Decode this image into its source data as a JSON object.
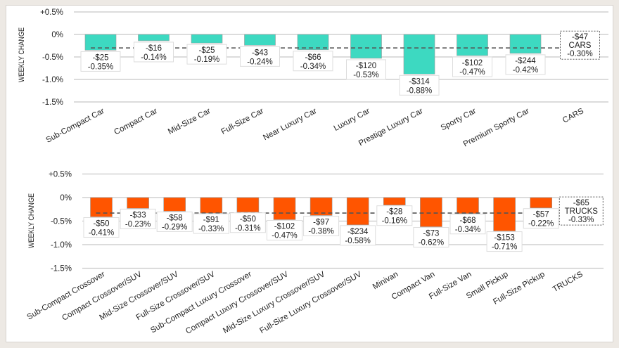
{
  "chart_data": [
    {
      "type": "bar",
      "ylabel": "WEEKLY CHANGE",
      "ylim": [
        -1.5,
        0.5
      ],
      "yticks": [
        "+0.5%",
        "0%",
        "-0.5%",
        "-1.0%",
        "-1.5%"
      ],
      "ytick_values": [
        0.5,
        0,
        -0.5,
        -1.0,
        -1.5
      ],
      "grid": true,
      "bar_color": "#3dd9c1",
      "categories": [
        "Sub-Compact Car",
        "Compact Car",
        "Mid-Size Car",
        "Full-Size Car",
        "Near Luxury Car",
        "Luxury Car",
        "Prestige Luxury Car",
        "Sporty Car",
        "Premium Sporty Car"
      ],
      "values": [
        -0.35,
        -0.14,
        -0.19,
        -0.24,
        -0.34,
        -0.53,
        -0.88,
        -0.47,
        -0.42
      ],
      "dollar_labels": [
        "-$25",
        "-$16",
        "-$25",
        "-$43",
        "-$66",
        "-$120",
        "-$314",
        "-$102",
        "-$244"
      ],
      "pct_labels": [
        "-0.35%",
        "-0.14%",
        "-0.19%",
        "-0.24%",
        "-0.34%",
        "-0.53%",
        "-0.88%",
        "-0.47%",
        "-0.42%"
      ],
      "average": {
        "category": "CARS",
        "value": -0.3,
        "dollar_label": "-$47",
        "name_label": "CARS",
        "pct_label": "-0.30%"
      }
    },
    {
      "type": "bar",
      "ylabel": "WEEKLY CHANGE",
      "ylim": [
        -1.5,
        0.5
      ],
      "yticks": [
        "+0.5%",
        "0%",
        "-0.5%",
        "-1.0%",
        "-1.5%"
      ],
      "ytick_values": [
        0.5,
        0,
        -0.5,
        -1.0,
        -1.5
      ],
      "grid": true,
      "bar_color": "#ff5500",
      "categories": [
        "Sub-Compact Crossover",
        "Compact Crossover/SUV",
        "Mid-Size Crossover/SUV",
        "Full-Size Crossover/SUV",
        "Sub-Compact Luxury Crossover",
        "Compact Luxury Crossover/SUV",
        "Mid-Size Luxury Crossover/SUV",
        "Full-Size Luxury Crossover/SUV",
        "Minivan",
        "Compact Van",
        "Full-Size Van",
        "Small Pickup",
        "Full-Size Pickup"
      ],
      "values": [
        -0.41,
        -0.23,
        -0.29,
        -0.33,
        -0.31,
        -0.47,
        -0.38,
        -0.58,
        -0.16,
        -0.62,
        -0.34,
        -0.71,
        -0.22
      ],
      "dollar_labels": [
        "-$50",
        "-$33",
        "-$58",
        "-$91",
        "-$50",
        "-$102",
        "-$97",
        "-$234",
        "-$28",
        "-$73",
        "-$68",
        "-$153",
        "-$57"
      ],
      "pct_labels": [
        "-0.41%",
        "-0.23%",
        "-0.29%",
        "-0.33%",
        "-0.31%",
        "-0.47%",
        "-0.38%",
        "-0.58%",
        "-0.16%",
        "-0.62%",
        "-0.34%",
        "-0.71%",
        "-0.22%"
      ],
      "average": {
        "category": "TRUCKS",
        "value": -0.33,
        "dollar_label": "-$65",
        "name_label": "TRUCKS",
        "pct_label": "-0.33%"
      }
    }
  ]
}
